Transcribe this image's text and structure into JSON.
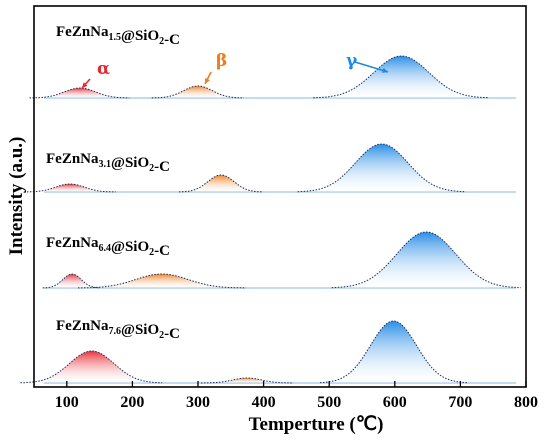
{
  "chart_data": {
    "type": "area",
    "xlabel": "Temperture (℃)",
    "ylabel": "Intensity (a.u.)",
    "xlim": [
      50,
      800
    ],
    "xticks": [
      100,
      200,
      300,
      400,
      500,
      600,
      700,
      800
    ],
    "grid": false,
    "colors": {
      "alpha": "#e8262e",
      "beta": "#ef7d1e",
      "gamma": "#1e88e5",
      "baseline": "#9ec6ee"
    },
    "panels": [
      {
        "title_base": "FeZnNa",
        "title_sub": "1.5",
        "title_mid": "@SiO",
        "title_sub2": "2",
        "title_end": "-C",
        "peaks": [
          {
            "label": "α",
            "center": 120,
            "height": 0.1,
            "width": 24
          },
          {
            "label": "β",
            "center": 300,
            "height": 0.12,
            "width": 22
          },
          {
            "label": "γ",
            "center": 610,
            "height": 0.42,
            "width": 42
          }
        ],
        "annotations": [
          "α",
          "β",
          "γ"
        ]
      },
      {
        "title_base": "FeZnNa",
        "title_sub": "3.1",
        "title_mid": "@SiO",
        "title_sub2": "2",
        "title_end": "-C",
        "peaks": [
          {
            "label": "α",
            "center": 105,
            "height": 0.08,
            "width": 22
          },
          {
            "label": "β",
            "center": 335,
            "height": 0.17,
            "width": 20
          },
          {
            "label": "γ",
            "center": 580,
            "height": 0.48,
            "width": 40
          }
        ]
      },
      {
        "title_base": "FeZnNa",
        "title_sub": "6.4",
        "title_mid": "@SiO",
        "title_sub2": "2",
        "title_end": "-C",
        "peaks": [
          {
            "label": "α",
            "center": 108,
            "height": 0.14,
            "width": 14
          },
          {
            "label": "β",
            "center": 245,
            "height": 0.14,
            "width": 40
          },
          {
            "label": "γ",
            "center": 648,
            "height": 0.56,
            "width": 45
          }
        ]
      },
      {
        "title_base": "FeZnNa",
        "title_sub": "7.6",
        "title_mid": "@SiO",
        "title_sub2": "2",
        "title_end": "-C",
        "peaks": [
          {
            "label": "α",
            "center": 138,
            "height": 0.32,
            "width": 34
          },
          {
            "label": "β",
            "center": 375,
            "height": 0.05,
            "width": 22
          },
          {
            "label": "γ",
            "center": 598,
            "height": 0.62,
            "width": 35
          }
        ]
      }
    ]
  }
}
